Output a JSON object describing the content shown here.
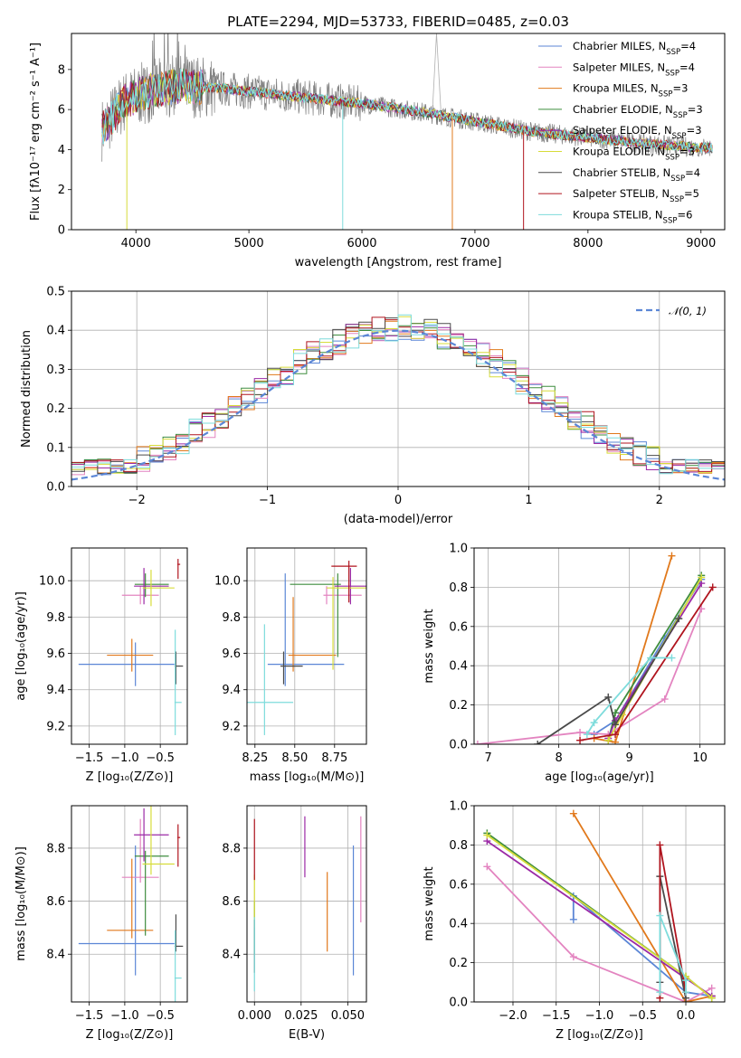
{
  "title": "PLATE=2294, MJD=53733, FIBERID=0485, z=0.03",
  "colors": {
    "Chabrier MILES": "#5b86d6",
    "Salpeter MILES": "#e384c0",
    "Kroupa MILES": "#e1791c",
    "Chabrier ELODIE": "#3e8d3e",
    "Salpeter ELODIE": "#9b2aa6",
    "Kroupa ELODIE": "#d7dc3a",
    "Chabrier STELIB": "#4a4a4a",
    "Salpeter STELIB": "#b0141e",
    "Kroupa STELIB": "#7edcdc",
    "data": "#7f7f7f",
    "normal": "#5b86d6"
  },
  "legend_labels": [
    "Chabrier MILES, N",
    "Salpeter MILES, N",
    "Kroupa MILES, N",
    "Chabrier ELODIE, N",
    "Salpeter ELODIE, N",
    "Kroupa ELODIE, N",
    "Chabrier STELIB, N",
    "Salpeter STELIB, N",
    "Kroupa STELIB, N"
  ],
  "legend_sub": "SSP",
  "legend_nssp": [
    "=4",
    "=4",
    "=3",
    "=3",
    "=3",
    "=3",
    "=4",
    "=5",
    "=6"
  ],
  "chart_data": [
    {
      "type": "line",
      "panel": "spectrum",
      "title": "PLATE=2294, MJD=53733, FIBERID=0485, z=0.03",
      "xlabel": "wavelength [Angstrom, rest frame]",
      "ylabel": "Flux [fλ10⁻¹⁷ erg cm⁻² s⁻¹ A⁻¹]",
      "xlim": [
        3430,
        9210
      ],
      "ylim": [
        0,
        9.8
      ],
      "xticks": [
        4000,
        5000,
        6000,
        7000,
        8000,
        9000
      ],
      "yticks": [
        0,
        2,
        4,
        6,
        8
      ],
      "continuum": [
        [
          3700,
          5.0
        ],
        [
          3900,
          6.4
        ],
        [
          4100,
          6.9
        ],
        [
          4400,
          7.2
        ],
        [
          4700,
          7.1
        ],
        [
          5000,
          6.9
        ],
        [
          5500,
          6.6
        ],
        [
          6000,
          6.3
        ],
        [
          6500,
          5.9
        ],
        [
          7000,
          5.4
        ],
        [
          7500,
          4.9
        ],
        [
          8000,
          4.6
        ],
        [
          8500,
          4.3
        ],
        [
          9000,
          4.1
        ]
      ],
      "wavelength_range": [
        3700,
        9100
      ],
      "dropouts": [
        {
          "x": 5830,
          "y": 0
        },
        {
          "x": 6800,
          "y": 0
        },
        {
          "x": 7430,
          "y": 0
        },
        {
          "x": 3920,
          "y": 0
        }
      ]
    },
    {
      "type": "histogram",
      "panel": "residuals",
      "xlabel": "(data-model)/error",
      "ylabel": "Normed distribution",
      "xlim": [
        -2.5,
        2.5
      ],
      "ylim": [
        0,
        0.5
      ],
      "xticks": [
        -2,
        -1,
        0,
        1,
        2
      ],
      "yticks": [
        0.0,
        0.1,
        0.2,
        0.3,
        0.4,
        0.5
      ],
      "legend": "𝒩(0, 1)",
      "bin_width": 0.1
    },
    {
      "type": "errorbar",
      "panel": "age-vs-Z",
      "xlabel": "Z [log₁₀(Z/Z⊙)]",
      "ylabel": "age  [log₁₀(age/yr)]",
      "xlim": [
        -1.75,
        -0.12
      ],
      "ylim": [
        9.1,
        10.18
      ],
      "xticks": [
        -1.5,
        -1.0,
        -0.5
      ],
      "yticks": [
        9.2,
        9.4,
        9.6,
        9.8,
        10.0
      ],
      "points": [
        {
          "name": "Chabrier MILES",
          "x": -0.85,
          "xerr": [
            0.8,
            0.55
          ],
          "y": 9.54,
          "yerr": [
            0.12,
            0.12
          ]
        },
        {
          "name": "Salpeter MILES",
          "x": -0.78,
          "xerr": [
            0.26,
            0.26
          ],
          "y": 9.92,
          "yerr": [
            0.05,
            0.05
          ]
        },
        {
          "name": "Kroupa MILES",
          "x": -0.9,
          "xerr": [
            0.35,
            0.3
          ],
          "y": 9.59,
          "yerr": [
            0.09,
            0.09
          ]
        },
        {
          "name": "Chabrier ELODIE",
          "x": -0.71,
          "xerr": [
            0.15,
            0.33
          ],
          "y": 9.98,
          "yerr": [
            0.07,
            0.06
          ]
        },
        {
          "name": "Salpeter ELODIE",
          "x": -0.73,
          "xerr": [
            0.14,
            0.35
          ],
          "y": 9.97,
          "yerr": [
            0.1,
            0.1
          ]
        },
        {
          "name": "Kroupa ELODIE",
          "x": -0.63,
          "xerr": [
            0.12,
            0.33
          ],
          "y": 9.96,
          "yerr": [
            0.1,
            0.1
          ]
        },
        {
          "name": "Chabrier STELIB",
          "x": -0.28,
          "xerr": [
            0.02,
            0.1
          ],
          "y": 9.53,
          "yerr": [
            0.1,
            0.08
          ]
        },
        {
          "name": "Salpeter STELIB",
          "x": -0.25,
          "xerr": [
            0.01,
            0.03
          ],
          "y": 10.09,
          "yerr": [
            0.08,
            0.03
          ]
        },
        {
          "name": "Kroupa STELIB",
          "x": -0.29,
          "xerr": [
            0.01,
            0.09
          ],
          "y": 9.33,
          "yerr": [
            0.18,
            0.4
          ]
        }
      ]
    },
    {
      "type": "errorbar",
      "panel": "age-vs-mass",
      "xlabel": "mass [log₁₀(M/M⊙)]",
      "ylabel": "",
      "xlim": [
        8.2,
        8.95
      ],
      "ylim": [
        9.1,
        10.18
      ],
      "xticks": [
        8.25,
        8.5,
        8.75
      ],
      "yticks": [
        9.2,
        9.4,
        9.6,
        9.8,
        10.0
      ],
      "points": [
        {
          "name": "Chabrier MILES",
          "x": 8.44,
          "xerr": [
            0.11,
            0.37
          ],
          "y": 9.54,
          "yerr": [
            0.12,
            0.5
          ]
        },
        {
          "name": "Salpeter MILES",
          "x": 8.7,
          "xerr": [
            0.02,
            0.22
          ],
          "y": 9.92,
          "yerr": [
            0.05,
            0.05
          ]
        },
        {
          "name": "Kroupa MILES",
          "x": 8.49,
          "xerr": [
            0.03,
            0.27
          ],
          "y": 9.59,
          "yerr": [
            0.09,
            0.32
          ]
        },
        {
          "name": "Chabrier ELODIE",
          "x": 8.77,
          "xerr": [
            0.3,
            0.02
          ],
          "y": 9.98,
          "yerr": [
            0.4,
            0.06
          ]
        },
        {
          "name": "Salpeter ELODIE",
          "x": 8.85,
          "xerr": [
            0.1,
            0.1
          ],
          "y": 9.97,
          "yerr": [
            0.1,
            0.1
          ]
        },
        {
          "name": "Kroupa ELODIE",
          "x": 8.74,
          "xerr": [
            0.04,
            0.22
          ],
          "y": 9.96,
          "yerr": [
            0.45,
            0.06
          ]
        },
        {
          "name": "Chabrier STELIB",
          "x": 8.43,
          "xerr": [
            0.02,
            0.12
          ],
          "y": 9.53,
          "yerr": [
            0.1,
            0.08
          ]
        },
        {
          "name": "Salpeter STELIB",
          "x": 8.84,
          "xerr": [
            0.11,
            0.05
          ],
          "y": 10.08,
          "yerr": [
            0.2,
            0.03
          ]
        },
        {
          "name": "Kroupa STELIB",
          "x": 8.31,
          "xerr": [
            0.14,
            0.18
          ],
          "y": 9.33,
          "yerr": [
            0.18,
            0.43
          ]
        }
      ]
    },
    {
      "type": "line",
      "panel": "massweight-vs-age",
      "xlabel": "age  [log₁₀(age/yr)]",
      "ylabel": "mass weight",
      "xlim": [
        6.8,
        10.35
      ],
      "ylim": [
        0,
        1.0
      ],
      "xticks": [
        7,
        8,
        9,
        10
      ],
      "yticks": [
        0.0,
        0.2,
        0.4,
        0.6,
        0.8,
        1.0
      ],
      "series": [
        {
          "name": "Chabrier MILES",
          "x": [
            8.5,
            8.8,
            9.5,
            10.02
          ],
          "y": [
            0.05,
            0.12,
            0.54,
            0.84
          ]
        },
        {
          "name": "Salpeter MILES",
          "x": [
            6.85,
            8.3,
            8.7,
            9.5,
            10.02
          ],
          "y": [
            0.0,
            0.06,
            0.05,
            0.23,
            0.69
          ]
        },
        {
          "name": "Kroupa MILES",
          "x": [
            8.5,
            8.8,
            9.6
          ],
          "y": [
            0.03,
            0.01,
            0.96
          ]
        },
        {
          "name": "Chabrier ELODIE",
          "x": [
            8.7,
            8.8,
            10.02
          ],
          "y": [
            0.02,
            0.16,
            0.86
          ]
        },
        {
          "name": "Salpeter ELODIE",
          "x": [
            8.7,
            8.8,
            10.02
          ],
          "y": [
            0.03,
            0.12,
            0.82
          ]
        },
        {
          "name": "Kroupa ELODIE",
          "x": [
            8.7,
            8.9,
            10.02
          ],
          "y": [
            0.02,
            0.15,
            0.85
          ]
        },
        {
          "name": "Chabrier STELIB",
          "x": [
            7.7,
            8.7,
            8.8,
            9.7
          ],
          "y": [
            0.0,
            0.24,
            0.1,
            0.64
          ]
        },
        {
          "name": "Salpeter STELIB",
          "x": [
            8.3,
            8.8,
            10.18
          ],
          "y": [
            0.02,
            0.05,
            0.8
          ]
        },
        {
          "name": "Kroupa STELIB",
          "x": [
            8.4,
            8.5,
            9.3,
            9.6
          ],
          "y": [
            0.05,
            0.11,
            0.44,
            0.44
          ]
        }
      ]
    },
    {
      "type": "errorbar",
      "panel": "mass-vs-Z",
      "xlabel": "Z [log₁₀(Z/Z⊙)]",
      "ylabel": "mass [log₁₀(M/M⊙)]",
      "xlim": [
        -1.75,
        -0.12
      ],
      "ylim": [
        8.22,
        8.96
      ],
      "xticks": [
        -1.5,
        -1.0,
        -0.5
      ],
      "yticks": [
        8.4,
        8.6,
        8.8
      ],
      "points": [
        {
          "name": "Chabrier MILES",
          "x": -0.85,
          "xerr": [
            0.8,
            0.55
          ],
          "y": 8.44,
          "yerr": [
            0.12,
            0.37
          ]
        },
        {
          "name": "Salpeter MILES",
          "x": -0.78,
          "xerr": [
            0.26,
            0.26
          ],
          "y": 8.69,
          "yerr": [
            0.02,
            0.22
          ]
        },
        {
          "name": "Kroupa MILES",
          "x": -0.9,
          "xerr": [
            0.35,
            0.3
          ],
          "y": 8.49,
          "yerr": [
            0.03,
            0.27
          ]
        },
        {
          "name": "Chabrier ELODIE",
          "x": -0.71,
          "xerr": [
            0.15,
            0.33
          ],
          "y": 8.77,
          "yerr": [
            0.3,
            0.02
          ]
        },
        {
          "name": "Salpeter ELODIE",
          "x": -0.73,
          "xerr": [
            0.14,
            0.35
          ],
          "y": 8.85,
          "yerr": [
            0.1,
            0.1
          ]
        },
        {
          "name": "Kroupa ELODIE",
          "x": -0.63,
          "xerr": [
            0.12,
            0.33
          ],
          "y": 8.74,
          "yerr": [
            0.04,
            0.22
          ]
        },
        {
          "name": "Chabrier STELIB",
          "x": -0.28,
          "xerr": [
            0.02,
            0.1
          ],
          "y": 8.43,
          "yerr": [
            0.02,
            0.12
          ]
        },
        {
          "name": "Salpeter STELIB",
          "x": -0.25,
          "xerr": [
            0.01,
            0.03
          ],
          "y": 8.84,
          "yerr": [
            0.11,
            0.05
          ]
        },
        {
          "name": "Kroupa STELIB",
          "x": -0.29,
          "xerr": [
            0.01,
            0.09
          ],
          "y": 8.31,
          "yerr": [
            0.14,
            0.18
          ]
        }
      ]
    },
    {
      "type": "errorbar",
      "panel": "mass-vs-EBV",
      "xlabel": "E(B-V)",
      "ylabel": "",
      "xlim": [
        -0.004,
        0.06
      ],
      "ylim": [
        8.22,
        8.96
      ],
      "xticks": [
        0.0,
        0.025,
        0.05
      ],
      "yticks": [
        8.4,
        8.6,
        8.8
      ],
      "points": [
        {
          "name": "Chabrier MILES",
          "x": 0.053,
          "y": 8.57,
          "yerr": [
            0.25,
            0.24
          ]
        },
        {
          "name": "Salpeter MILES",
          "x": 0.057,
          "y": 8.69,
          "yerr": [
            0.17,
            0.23
          ]
        },
        {
          "name": "Kroupa MILES",
          "x": 0.039,
          "y": 8.56,
          "yerr": [
            0.15,
            0.15
          ]
        },
        {
          "name": "Chabrier ELODIE",
          "x": 0.0,
          "y": 8.5,
          "yerr": [
            0.1,
            0.1
          ]
        },
        {
          "name": "Salpeter ELODIE",
          "x": 0.027,
          "y": 8.83,
          "yerr": [
            0.14,
            0.09
          ]
        },
        {
          "name": "Kroupa ELODIE",
          "x": 0.0,
          "y": 8.6,
          "yerr": [
            0.1,
            0.1
          ]
        },
        {
          "name": "Chabrier STELIB",
          "x": 0.0,
          "y": 8.43,
          "yerr": [
            0.1,
            0.1
          ]
        },
        {
          "name": "Salpeter STELIB",
          "x": 0.0,
          "y": 8.77,
          "yerr": [
            0.09,
            0.14
          ]
        },
        {
          "name": "Kroupa STELIB",
          "x": 0.0,
          "y": 8.4,
          "yerr": [
            0.14,
            0.14
          ]
        }
      ]
    },
    {
      "type": "line",
      "panel": "massweight-vs-Z",
      "xlabel": "Z [log₁₀(Z/Z⊙)]",
      "ylabel": "mass weight",
      "xlim": [
        -2.45,
        0.45
      ],
      "ylim": [
        0,
        1.0
      ],
      "xticks": [
        -2.0,
        -1.5,
        -1.0,
        -0.5,
        0.0
      ],
      "yticks": [
        0.0,
        0.2,
        0.4,
        0.6,
        0.8,
        1.0
      ],
      "series": [
        {
          "name": "Chabrier MILES",
          "x": [
            -1.3,
            -1.3,
            0.0,
            0.3
          ],
          "y": [
            0.42,
            0.54,
            0.05,
            0.03
          ]
        },
        {
          "name": "Salpeter MILES",
          "x": [
            -2.3,
            -1.3,
            0.0,
            0.3
          ],
          "y": [
            0.69,
            0.23,
            0.0,
            0.07
          ]
        },
        {
          "name": "Kroupa MILES",
          "x": [
            -1.3,
            0.0,
            0.3
          ],
          "y": [
            0.96,
            0.0,
            0.03
          ]
        },
        {
          "name": "Chabrier ELODIE",
          "x": [
            -2.3,
            0.0,
            0.3
          ],
          "y": [
            0.86,
            0.13,
            0.02
          ]
        },
        {
          "name": "Salpeter ELODIE",
          "x": [
            -2.3,
            0.0,
            0.3
          ],
          "y": [
            0.82,
            0.12,
            0.03
          ]
        },
        {
          "name": "Kroupa ELODIE",
          "x": [
            -2.3,
            0.0,
            0.3
          ],
          "y": [
            0.85,
            0.13,
            0.02
          ]
        },
        {
          "name": "Chabrier STELIB",
          "x": [
            -0.3,
            -0.3,
            0.0
          ],
          "y": [
            0.1,
            0.64,
            0.02
          ]
        },
        {
          "name": "Salpeter STELIB",
          "x": [
            -0.3,
            -0.3,
            0.0
          ],
          "y": [
            0.02,
            0.8,
            0.05
          ]
        },
        {
          "name": "Kroupa STELIB",
          "x": [
            -0.3,
            -0.3,
            0.0,
            0.0
          ],
          "y": [
            0.05,
            0.44,
            0.11,
            0.05
          ]
        }
      ]
    }
  ]
}
